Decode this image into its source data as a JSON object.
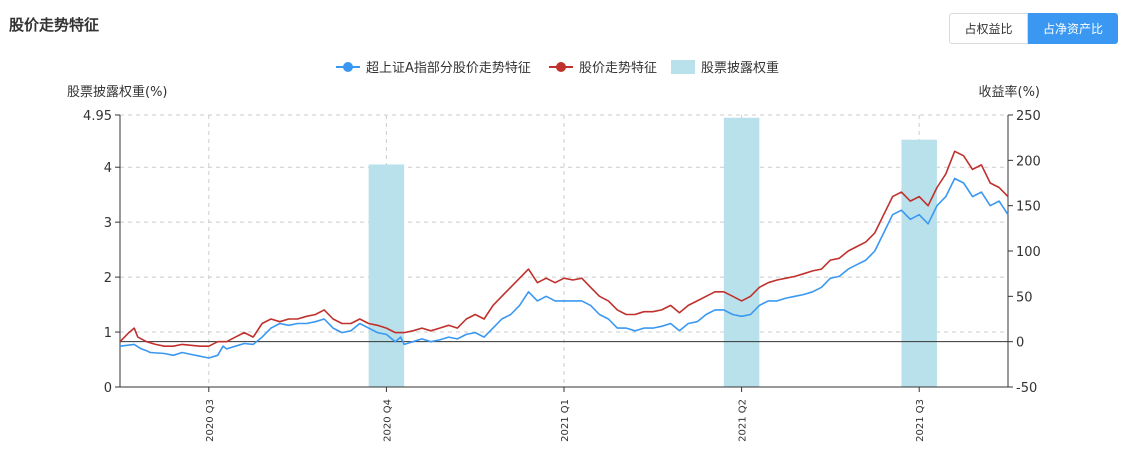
{
  "header": {
    "title": "股价走势特征",
    "toggle_left": "占权益比",
    "toggle_right": "占净资产比"
  },
  "chart_data": {
    "type": "line",
    "legend": [
      "超上证A指部分股价走势特征",
      "股价走势特征",
      "股票披露权重"
    ],
    "legend_position": "top-center",
    "colors": {
      "blue": "#3a98f2",
      "red": "#c0312d",
      "bar": "#b9e1eb",
      "grid": "#cccccc",
      "axis": "#333333"
    },
    "y_left": {
      "label": "股票披露权重(%)",
      "ticks": [
        "0",
        "1",
        "2",
        "3",
        "4",
        "4.95"
      ],
      "range": [
        0,
        4.95
      ]
    },
    "y_right": {
      "label": "收益率(%)",
      "ticks": [
        "-50",
        "0",
        "50",
        "100",
        "150",
        "200",
        "250"
      ],
      "range": [
        -50,
        250
      ]
    },
    "x_ticks": [
      "2020 Q3",
      "2020 Q4",
      "2021 Q1",
      "2021 Q2",
      "2021 Q3"
    ],
    "x_range": [
      0,
      500
    ],
    "x_tick_positions": [
      50,
      150,
      250,
      350,
      450
    ],
    "bars": [
      {
        "x": 150,
        "value": 4.05
      },
      {
        "x": 350,
        "value": 4.9
      },
      {
        "x": 450,
        "value": 4.5
      }
    ],
    "bar_width": 20,
    "series": [
      {
        "name": "超上证A指部分股价走势特征",
        "color": "#3a98f2",
        "points": [
          [
            0,
            -5
          ],
          [
            8,
            -3
          ],
          [
            12,
            -8
          ],
          [
            15,
            -10
          ],
          [
            17,
            -12
          ],
          [
            25,
            -13
          ],
          [
            30,
            -15
          ],
          [
            35,
            -12
          ],
          [
            40,
            -14
          ],
          [
            45,
            -16
          ],
          [
            50,
            -18
          ],
          [
            55,
            -15
          ],
          [
            58,
            -5
          ],
          [
            60,
            -8
          ],
          [
            65,
            -5
          ],
          [
            70,
            -2
          ],
          [
            75,
            -3
          ],
          [
            80,
            5
          ],
          [
            85,
            15
          ],
          [
            90,
            20
          ],
          [
            95,
            18
          ],
          [
            100,
            20
          ],
          [
            105,
            20
          ],
          [
            110,
            22
          ],
          [
            115,
            25
          ],
          [
            120,
            15
          ],
          [
            125,
            10
          ],
          [
            130,
            12
          ],
          [
            135,
            20
          ],
          [
            140,
            15
          ],
          [
            145,
            10
          ],
          [
            150,
            8
          ],
          [
            155,
            0
          ],
          [
            158,
            5
          ],
          [
            160,
            -3
          ],
          [
            165,
            0
          ],
          [
            170,
            3
          ],
          [
            175,
            0
          ],
          [
            180,
            2
          ],
          [
            185,
            5
          ],
          [
            190,
            3
          ],
          [
            195,
            8
          ],
          [
            200,
            10
          ],
          [
            205,
            5
          ],
          [
            210,
            15
          ],
          [
            215,
            25
          ],
          [
            220,
            30
          ],
          [
            225,
            40
          ],
          [
            230,
            55
          ],
          [
            235,
            45
          ],
          [
            240,
            50
          ],
          [
            245,
            45
          ],
          [
            250,
            45
          ],
          [
            255,
            45
          ],
          [
            260,
            45
          ],
          [
            265,
            40
          ],
          [
            270,
            30
          ],
          [
            275,
            25
          ],
          [
            280,
            15
          ],
          [
            285,
            15
          ],
          [
            290,
            12
          ],
          [
            295,
            15
          ],
          [
            300,
            15
          ],
          [
            305,
            17
          ],
          [
            310,
            20
          ],
          [
            315,
            12
          ],
          [
            320,
            20
          ],
          [
            325,
            22
          ],
          [
            330,
            30
          ],
          [
            335,
            35
          ],
          [
            340,
            35
          ],
          [
            345,
            30
          ],
          [
            350,
            28
          ],
          [
            355,
            30
          ],
          [
            360,
            40
          ],
          [
            365,
            45
          ],
          [
            370,
            45
          ],
          [
            375,
            48
          ],
          [
            380,
            50
          ],
          [
            385,
            52
          ],
          [
            390,
            55
          ],
          [
            395,
            60
          ],
          [
            400,
            70
          ],
          [
            405,
            72
          ],
          [
            410,
            80
          ],
          [
            415,
            85
          ],
          [
            420,
            90
          ],
          [
            425,
            100
          ],
          [
            430,
            120
          ],
          [
            435,
            140
          ],
          [
            440,
            145
          ],
          [
            445,
            135
          ],
          [
            450,
            140
          ],
          [
            455,
            130
          ],
          [
            460,
            150
          ],
          [
            465,
            160
          ],
          [
            470,
            180
          ],
          [
            475,
            175
          ],
          [
            480,
            160
          ],
          [
            485,
            165
          ],
          [
            490,
            150
          ],
          [
            495,
            155
          ],
          [
            500,
            140
          ]
        ]
      },
      {
        "name": "股价走势特征",
        "color": "#c0312d",
        "points": [
          [
            0,
            0
          ],
          [
            5,
            10
          ],
          [
            8,
            15
          ],
          [
            10,
            5
          ],
          [
            12,
            3
          ],
          [
            15,
            0
          ],
          [
            20,
            -3
          ],
          [
            25,
            -5
          ],
          [
            30,
            -5
          ],
          [
            35,
            -3
          ],
          [
            40,
            -4
          ],
          [
            45,
            -5
          ],
          [
            50,
            -5
          ],
          [
            55,
            0
          ],
          [
            60,
            0
          ],
          [
            65,
            5
          ],
          [
            70,
            10
          ],
          [
            75,
            5
          ],
          [
            80,
            20
          ],
          [
            85,
            25
          ],
          [
            90,
            22
          ],
          [
            95,
            25
          ],
          [
            100,
            25
          ],
          [
            105,
            28
          ],
          [
            110,
            30
          ],
          [
            115,
            35
          ],
          [
            120,
            25
          ],
          [
            125,
            20
          ],
          [
            130,
            20
          ],
          [
            135,
            25
          ],
          [
            140,
            20
          ],
          [
            145,
            18
          ],
          [
            150,
            15
          ],
          [
            155,
            10
          ],
          [
            160,
            10
          ],
          [
            165,
            12
          ],
          [
            170,
            15
          ],
          [
            175,
            12
          ],
          [
            180,
            15
          ],
          [
            185,
            18
          ],
          [
            190,
            15
          ],
          [
            195,
            25
          ],
          [
            200,
            30
          ],
          [
            205,
            25
          ],
          [
            210,
            40
          ],
          [
            215,
            50
          ],
          [
            220,
            60
          ],
          [
            225,
            70
          ],
          [
            230,
            80
          ],
          [
            235,
            65
          ],
          [
            240,
            70
          ],
          [
            245,
            65
          ],
          [
            250,
            70
          ],
          [
            255,
            68
          ],
          [
            260,
            70
          ],
          [
            265,
            60
          ],
          [
            270,
            50
          ],
          [
            275,
            45
          ],
          [
            280,
            35
          ],
          [
            285,
            30
          ],
          [
            290,
            30
          ],
          [
            295,
            33
          ],
          [
            300,
            33
          ],
          [
            305,
            35
          ],
          [
            310,
            40
          ],
          [
            315,
            32
          ],
          [
            320,
            40
          ],
          [
            325,
            45
          ],
          [
            330,
            50
          ],
          [
            335,
            55
          ],
          [
            340,
            55
          ],
          [
            345,
            50
          ],
          [
            350,
            45
          ],
          [
            355,
            50
          ],
          [
            360,
            60
          ],
          [
            365,
            65
          ],
          [
            370,
            68
          ],
          [
            375,
            70
          ],
          [
            380,
            72
          ],
          [
            385,
            75
          ],
          [
            390,
            78
          ],
          [
            395,
            80
          ],
          [
            400,
            90
          ],
          [
            405,
            92
          ],
          [
            410,
            100
          ],
          [
            415,
            105
          ],
          [
            420,
            110
          ],
          [
            425,
            120
          ],
          [
            430,
            140
          ],
          [
            435,
            160
          ],
          [
            440,
            165
          ],
          [
            445,
            155
          ],
          [
            450,
            160
          ],
          [
            455,
            150
          ],
          [
            460,
            170
          ],
          [
            465,
            185
          ],
          [
            470,
            210
          ],
          [
            475,
            205
          ],
          [
            480,
            190
          ],
          [
            485,
            195
          ],
          [
            490,
            175
          ],
          [
            495,
            170
          ],
          [
            500,
            160
          ]
        ]
      }
    ]
  }
}
